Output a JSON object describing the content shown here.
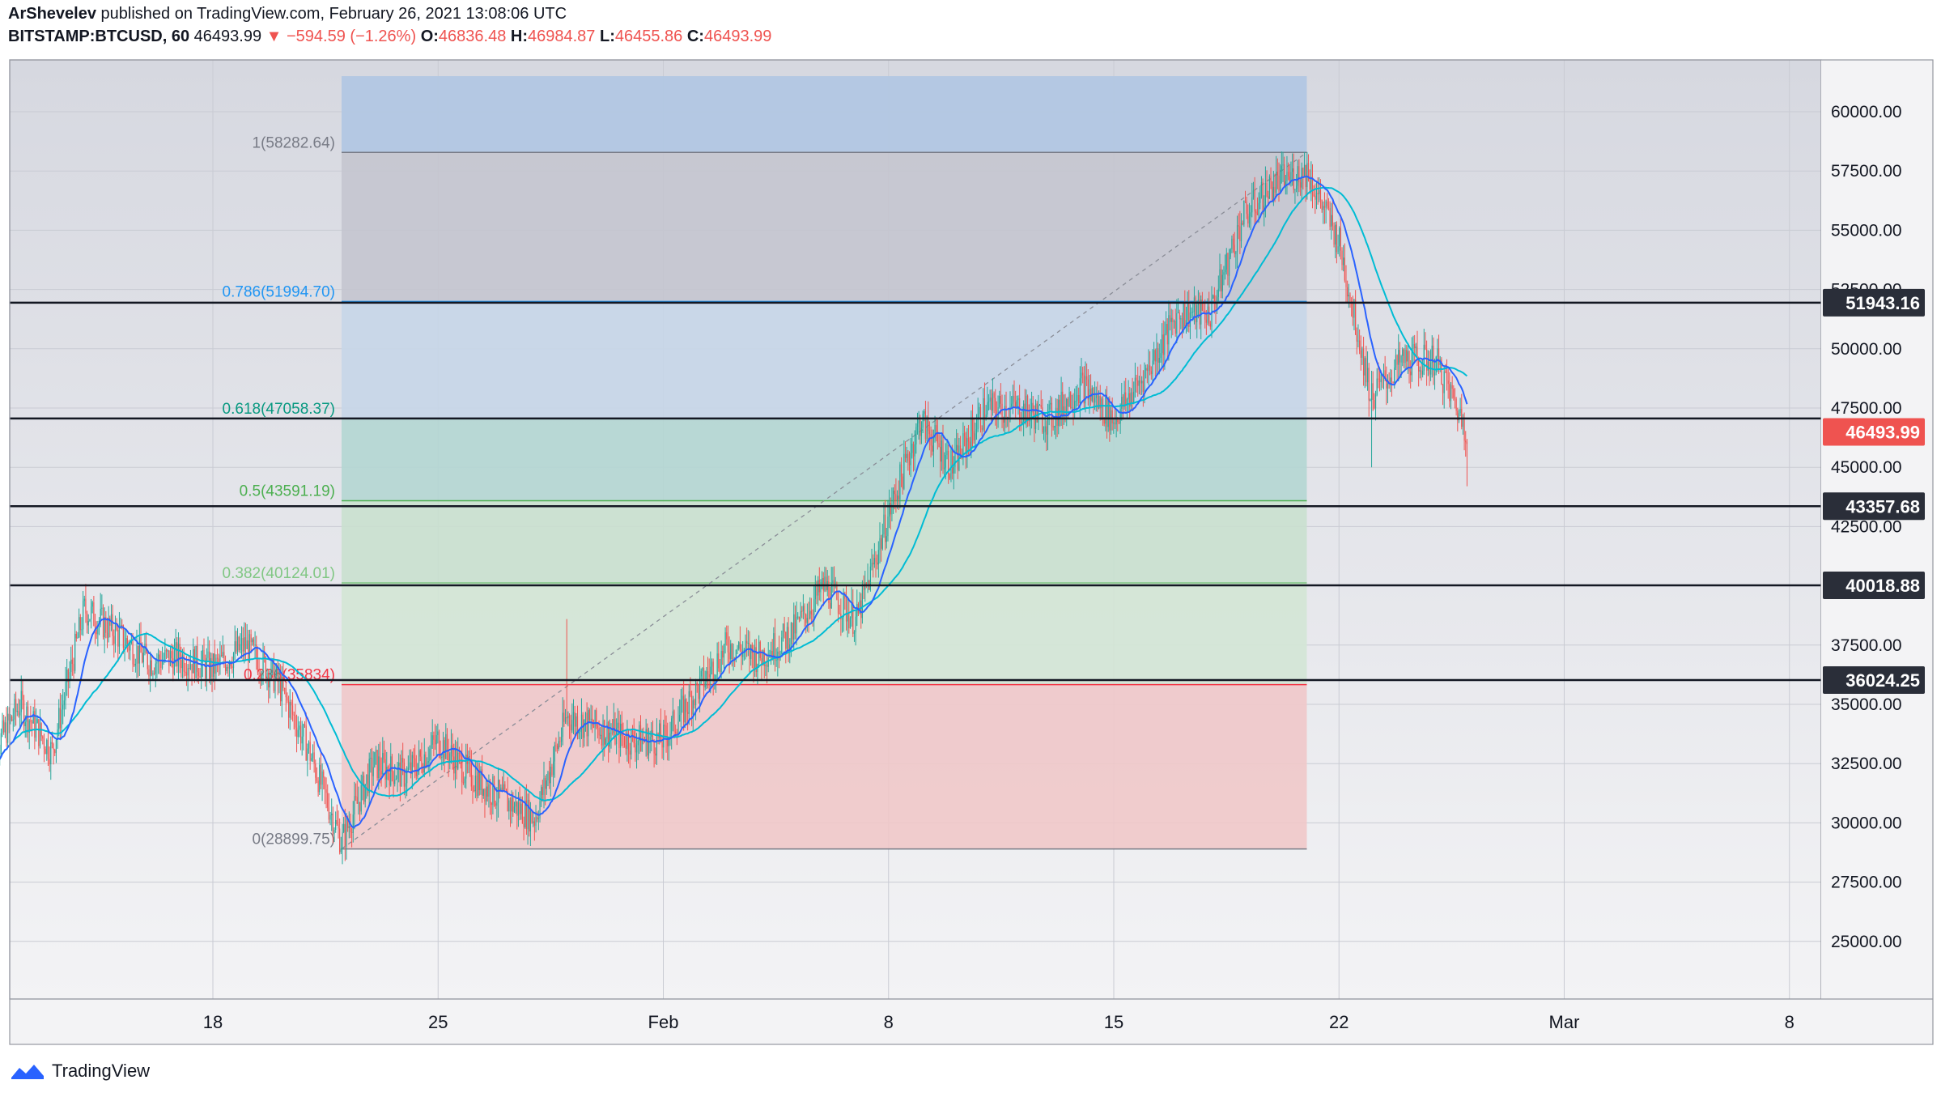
{
  "header": {
    "author": "ArShevelev",
    "published_text": "published on TradingView.com, February 26, 2021 13:08:06 UTC",
    "symbol": "BITSTAMP:BTCUSD, 60",
    "last": "46493.99",
    "arrow": "▼",
    "change": "−594.59 (−1.26%)",
    "o_label": "O:",
    "o_value": "46836.48",
    "h_label": "H:",
    "h_value": "46984.87",
    "l_label": "L:",
    "l_value": "46455.86",
    "c_label": "C:",
    "c_value": "46493.99"
  },
  "footer": {
    "brand": "TradingView"
  },
  "colors": {
    "up": "#26a69a",
    "down": "#ef5350",
    "ma_fast": "#2962ff",
    "ma_slow": "#00bcd4",
    "fib_top_zone": "#b2c7e3",
    "fib_1_0786": "#c4c5cf",
    "fib_0786_0618": "#c7d6e8",
    "fib_0618_05": "#b4d6d3",
    "fib_05_0382": "#c9e0cf",
    "fib_0382_0236": "#d3e6d5",
    "fib_0236_0": "#f0c8c9",
    "hline": "#131722",
    "price_tag": "#ef5350"
  },
  "chart_data": {
    "type": "candlestick",
    "y_range": [
      22500,
      61500
    ],
    "x_range_days": "2021-01-11 to 2021-03-09",
    "y_ticks": [
      "60000.00",
      "57500.00",
      "55000.00",
      "52500.00",
      "50000.00",
      "47500.00",
      "45000.00",
      "42500.00",
      "40000.00",
      "37500.00",
      "35000.00",
      "32500.00",
      "30000.00",
      "27500.00",
      "25000.00"
    ],
    "x_ticks": [
      {
        "label": "18",
        "date": "2021-01-18"
      },
      {
        "label": "25",
        "date": "2021-01-25"
      },
      {
        "label": "Feb",
        "date": "2021-02-01"
      },
      {
        "label": "8",
        "date": "2021-02-08"
      },
      {
        "label": "15",
        "date": "2021-02-15"
      },
      {
        "label": "22",
        "date": "2021-02-22"
      },
      {
        "label": "Mar",
        "date": "2021-03-01"
      },
      {
        "label": "8",
        "date": "2021-03-08"
      }
    ],
    "price_path": [
      [
        "2021-01-11",
        32500
      ],
      [
        "2021-01-12",
        35000
      ],
      [
        "2021-01-13",
        33000
      ],
      [
        "2021-01-14",
        39000
      ],
      [
        "2021-01-15",
        38000
      ],
      [
        "2021-01-16",
        36800
      ],
      [
        "2021-01-17",
        37000
      ],
      [
        "2021-01-18",
        36500
      ],
      [
        "2021-01-19",
        37500
      ],
      [
        "2021-01-20",
        36000
      ],
      [
        "2021-01-21",
        33000
      ],
      [
        "2021-01-22",
        29200
      ],
      [
        "2021-01-23",
        32500
      ],
      [
        "2021-01-24",
        32000
      ],
      [
        "2021-01-25",
        33500
      ],
      [
        "2021-01-26",
        32000
      ],
      [
        "2021-01-27",
        31000
      ],
      [
        "2021-01-28",
        30200
      ],
      [
        "2021-01-29",
        34500
      ],
      [
        "2021-01-30",
        34000
      ],
      [
        "2021-01-31",
        33500
      ],
      [
        "2021-02-01",
        33500
      ],
      [
        "2021-02-02",
        35500
      ],
      [
        "2021-02-03",
        37500
      ],
      [
        "2021-02-04",
        37000
      ],
      [
        "2021-02-05",
        38000
      ],
      [
        "2021-02-06",
        40000
      ],
      [
        "2021-02-07",
        38500
      ],
      [
        "2021-02-08",
        43000
      ],
      [
        "2021-02-09",
        47000
      ],
      [
        "2021-02-10",
        45000
      ],
      [
        "2021-02-11",
        47500
      ],
      [
        "2021-02-12",
        47500
      ],
      [
        "2021-02-13",
        47000
      ],
      [
        "2021-02-14",
        48500
      ],
      [
        "2021-02-15",
        47000
      ],
      [
        "2021-02-16",
        49000
      ],
      [
        "2021-02-17",
        51500
      ],
      [
        "2021-02-18",
        51500
      ],
      [
        "2021-02-19",
        55500
      ],
      [
        "2021-02-20",
        57000
      ],
      [
        "2021-02-21",
        57500
      ],
      [
        "2021-02-22",
        54500
      ],
      [
        "2021-02-23",
        48000
      ],
      [
        "2021-02-24",
        49500
      ],
      [
        "2021-02-25",
        49500
      ],
      [
        "2021-02-26",
        46494
      ]
    ],
    "spikes": [
      {
        "date": "2021-01-29",
        "value": 38600
      },
      {
        "date": "2021-02-21",
        "value": 58300
      },
      {
        "date": "2021-02-23",
        "value": 45000
      },
      {
        "date": "2021-02-26",
        "value": 44200
      }
    ],
    "moving_averages": [
      {
        "name": "fast",
        "color": "#2962ff"
      },
      {
        "name": "slow",
        "color": "#00bcd4"
      }
    ],
    "fibonacci": {
      "start_date": "2021-01-22",
      "end_date": "2021-02-21",
      "levels": [
        {
          "ratio": 1,
          "price": 58282.64,
          "label": "1(58282.64)",
          "color": "#787b86"
        },
        {
          "ratio": 0.786,
          "price": 51994.7,
          "label": "0.786(51994.70)",
          "color": "#2196f3"
        },
        {
          "ratio": 0.618,
          "price": 47058.37,
          "label": "0.618(47058.37)",
          "color": "#089981"
        },
        {
          "ratio": 0.5,
          "price": 43591.19,
          "label": "0.5(43591.19)",
          "color": "#4caf50"
        },
        {
          "ratio": 0.382,
          "price": 40124.01,
          "label": "0.382(40124.01)",
          "color": "#81c784"
        },
        {
          "ratio": 0.236,
          "price": 35834,
          "label": "0.236(35834)",
          "color": "#f23645"
        },
        {
          "ratio": 0,
          "price": 28899.75,
          "label": "0(28899.75)",
          "color": "#787b86"
        }
      ],
      "top_extension": 61500
    },
    "horizontal_lines": [
      {
        "price": 51943.16,
        "label": "51943.16"
      },
      {
        "price": 47058.37,
        "label": "47058.37"
      },
      {
        "price": 43357.68,
        "label": "43357.68"
      },
      {
        "price": 40018.88,
        "label": "40018.88"
      },
      {
        "price": 36024.25,
        "label": "36024.25"
      }
    ],
    "last_price": {
      "price": 46493.99,
      "label": "46493.99"
    }
  }
}
